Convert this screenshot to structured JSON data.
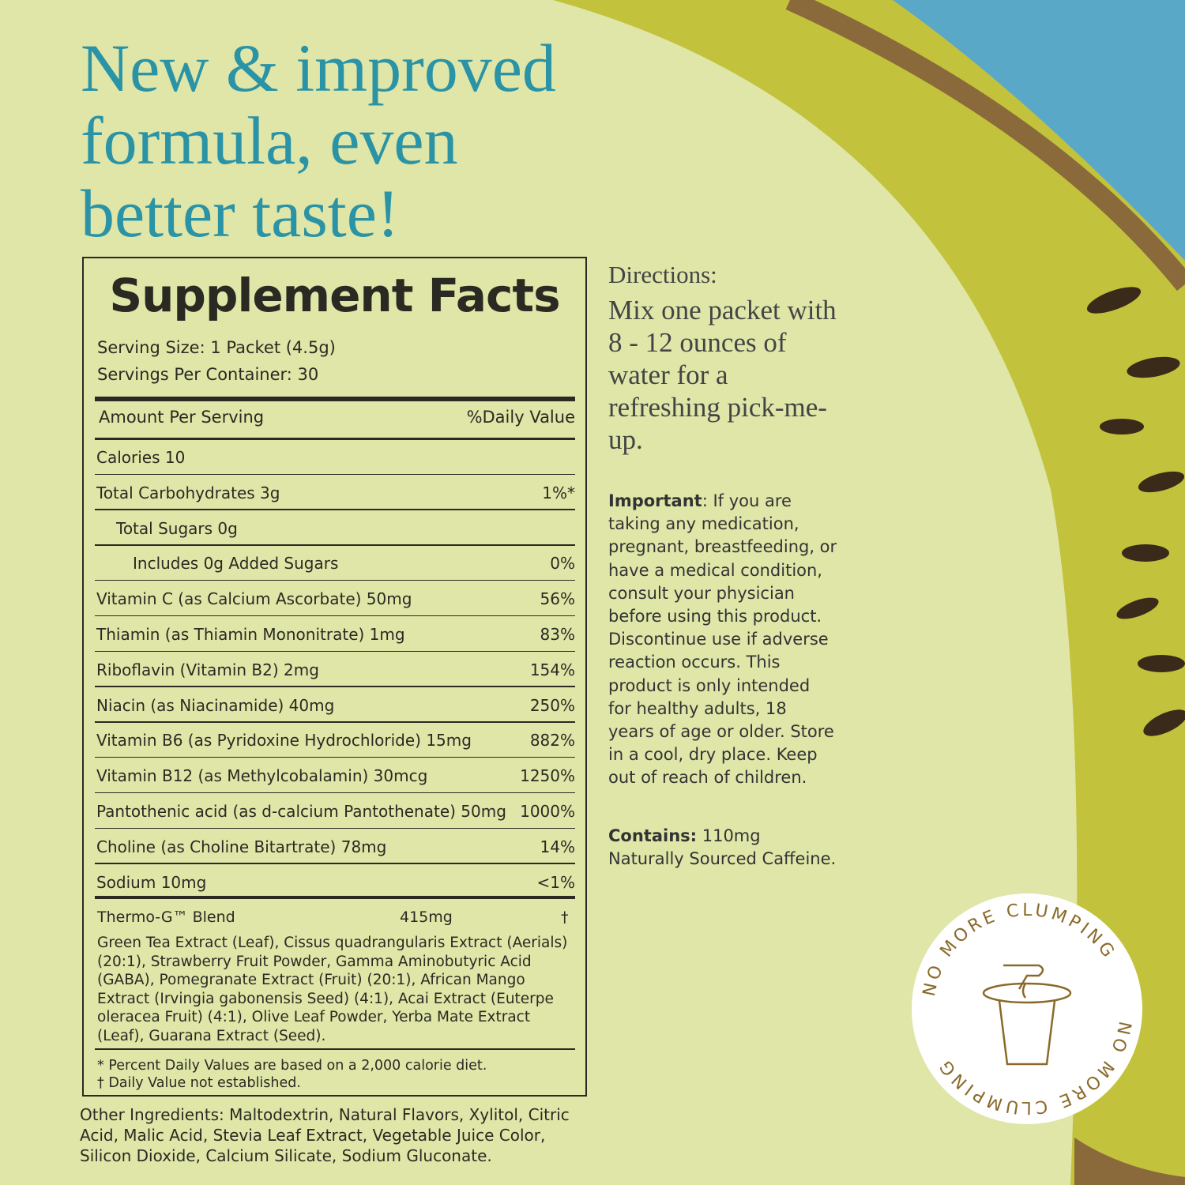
{
  "headline": "New & improved formula, even better taste!",
  "facts": {
    "title": "Supplement Facts",
    "serving_size": "Serving Size: 1 Packet (4.5g)",
    "servings_per_container": "Servings Per Container: 30",
    "amount_header": "Amount Per Serving",
    "dv_header": "%Daily Value",
    "rows": [
      {
        "label": "Calories 10"
      },
      {
        "label": "Total Carbohydrates 3g",
        "dv": "1%*"
      },
      {
        "label": "Total Sugars 0g"
      },
      {
        "label": "Includes 0g Added Sugars",
        "dv": "0%"
      },
      {
        "label": "Vitamin C (as Calcium Ascorbate) 50mg",
        "dv": "56%"
      },
      {
        "label": "Thiamin (as Thiamin Mononitrate) 1mg",
        "dv": "83%"
      },
      {
        "label": "Riboflavin (Vitamin B2) 2mg",
        "dv": "154%"
      },
      {
        "label": "Niacin (as Niacinamide) 40mg",
        "dv": "250%"
      },
      {
        "label": "Vitamin B6 (as Pyridoxine Hydrochloride) 15mg",
        "dv": "882%"
      },
      {
        "label": "Vitamin B12 (as Methylcobalamin) 30mcg",
        "dv": "1250%"
      },
      {
        "label": "Pantothenic acid (as d-calcium Pantothenate) 50mg",
        "dv": "1000%"
      },
      {
        "label": "Choline (as Choline Bitartrate) 78mg",
        "dv": "14%"
      },
      {
        "label": "Sodium 10mg",
        "dv": "<1%"
      }
    ],
    "blend": {
      "name": "Thermo-G™ Blend",
      "amount": "415mg",
      "dv": "†",
      "ingredients": "Green Tea Extract (Leaf), Cissus quadrangularis Extract (Aerials) (20:1), Strawberry Fruit Powder, Gamma Aminobutyric Acid (GABA), Pomegranate Extract (Fruit) (20:1), African Mango Extract (Irvingia gabonensis Seed) (4:1), Acai Extract (Euterpe oleracea Fruit) (4:1), Olive Leaf Powder, Yerba Mate Extract (Leaf), Guarana Extract (Seed)."
    },
    "footnotes": [
      "* Percent Daily Values are based on a 2,000 calorie diet.",
      "† Daily Value not established."
    ]
  },
  "other_ingredients": {
    "label": "Other Ingredients:",
    "text": "Maltodextrin, Natural Flavors, Xylitol, Citric Acid, Malic Acid, Stevia Leaf Extract, Vegetable Juice Color, Silicon Dioxide, Calcium Silicate, Sodium Gluconate."
  },
  "directions": {
    "label": "Directions:",
    "text": "Mix one packet with 8 - 12 ounces of water for a refreshing pick-me-up."
  },
  "important": {
    "label": "Important",
    "text": ": If you are taking any medication, pregnant, breastfeeding, or have a medical condition, consult your physician before using this product. Discontinue use if adverse reaction occurs. This product is only intended for healthy adults, 18 years of age or older. Store in a cool, dry place. Keep out of reach of children."
  },
  "contains": {
    "label": "Contains:",
    "text": " 110mg Naturally Sourced Caffeine."
  },
  "badge": "NO MORE CLUMPING"
}
